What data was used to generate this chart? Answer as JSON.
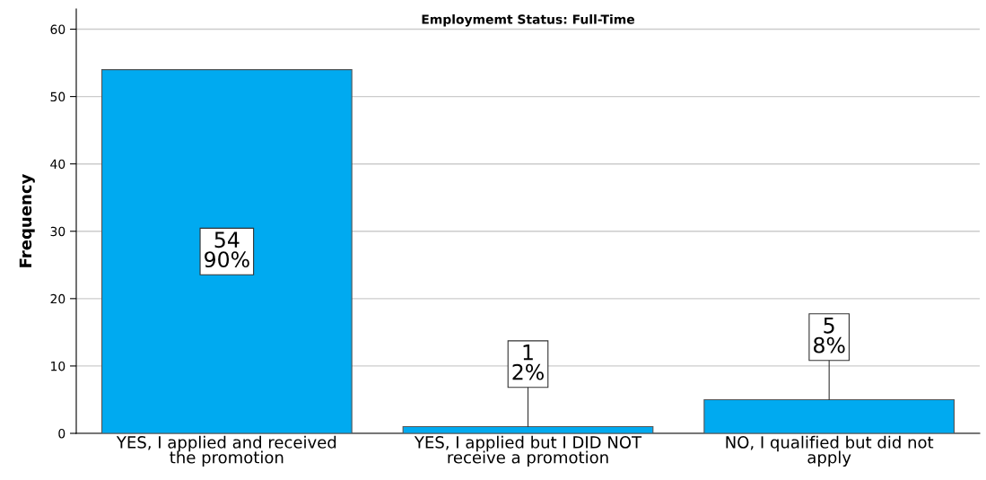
{
  "chart_data": {
    "type": "bar",
    "title": "Employmemt Status: Full-Time",
    "ylabel": "Frequency",
    "categories": [
      "YES, I applied and received\nthe promotion",
      "YES, I applied but I DID NOT\nreceive a promotion",
      "NO, I qualified but did not\napply"
    ],
    "values": [
      54,
      1,
      5
    ],
    "color": "#00aaf0",
    "value_labels": [
      "54\n90%",
      "1\n2%",
      "5\n8%"
    ],
    "ylim": [
      0,
      63
    ],
    "yticks": [
      0,
      10,
      20,
      30,
      40,
      50,
      60
    ],
    "grid": "y"
  }
}
